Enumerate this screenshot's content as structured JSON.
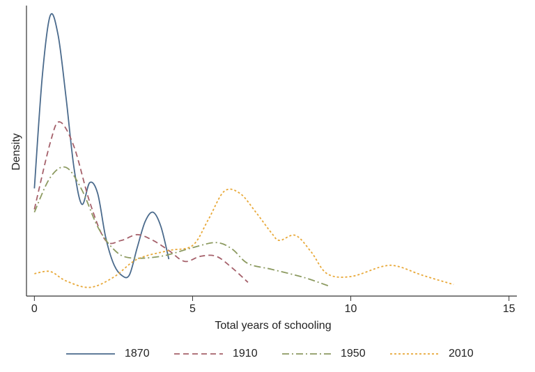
{
  "chart_data": {
    "type": "line",
    "xlabel": "Total years of schooling",
    "ylabel": "Density",
    "xlim": [
      -0.25,
      15.25
    ],
    "xticks": [
      0,
      5,
      10,
      15
    ],
    "ylim": [
      0,
      0.4
    ],
    "series": [
      {
        "name": "1870",
        "color": "#4a6a8c",
        "dash": "none",
        "x": [
          0,
          0.25,
          0.5,
          0.75,
          1.0,
          1.25,
          1.5,
          1.75,
          2.0,
          2.25,
          2.5,
          2.75,
          3.0,
          3.25,
          3.5,
          3.75,
          4.0,
          4.25
        ],
        "values": [
          0.149,
          0.304,
          0.388,
          0.361,
          0.275,
          0.178,
          0.127,
          0.157,
          0.142,
          0.082,
          0.045,
          0.029,
          0.029,
          0.067,
          0.103,
          0.116,
          0.096,
          0.051
        ]
      },
      {
        "name": "1910",
        "color": "#a5606a",
        "dash": "8,5",
        "x": [
          0,
          0.5,
          0.8,
          1.25,
          1.75,
          2.25,
          2.75,
          3.25,
          3.75,
          4.25,
          4.75,
          5.25,
          5.75,
          6.25,
          6.75
        ],
        "values": [
          0.12,
          0.212,
          0.241,
          0.207,
          0.13,
          0.077,
          0.077,
          0.085,
          0.077,
          0.063,
          0.048,
          0.055,
          0.055,
          0.039,
          0.019
        ]
      },
      {
        "name": "1950",
        "color": "#8c9a60",
        "dash": "10,4,2,4",
        "x": [
          0,
          0.5,
          1.0,
          1.5,
          2.0,
          2.5,
          3.0,
          4.0,
          5.0,
          5.75,
          6.25,
          6.75,
          7.5,
          8.5,
          9.3
        ],
        "values": [
          0.116,
          0.164,
          0.178,
          0.147,
          0.096,
          0.065,
          0.053,
          0.055,
          0.067,
          0.074,
          0.065,
          0.045,
          0.037,
          0.026,
          0.014
        ]
      },
      {
        "name": "2010",
        "color": "#e8a838",
        "dash": "3,3",
        "x": [
          0,
          0.5,
          1.0,
          1.75,
          2.5,
          3.25,
          4.25,
          5.0,
          5.5,
          6.0,
          6.5,
          7.0,
          7.5,
          7.75,
          8.25,
          8.75,
          9.25,
          10,
          11,
          11.5,
          12.25,
          13.25
        ],
        "values": [
          0.031,
          0.034,
          0.021,
          0.012,
          0.026,
          0.051,
          0.063,
          0.07,
          0.106,
          0.145,
          0.142,
          0.116,
          0.087,
          0.077,
          0.084,
          0.061,
          0.031,
          0.027,
          0.041,
          0.041,
          0.029,
          0.016
        ]
      }
    ]
  }
}
